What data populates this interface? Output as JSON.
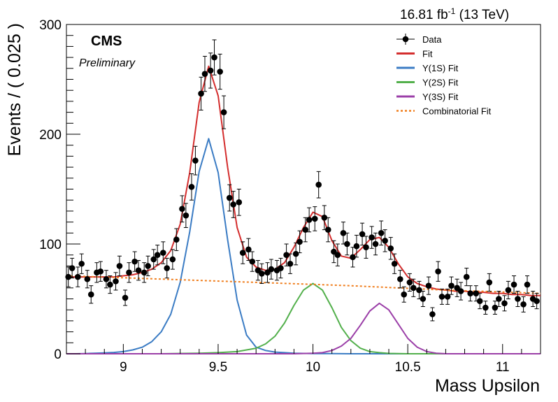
{
  "header": {
    "lumi": "16.81 fb",
    "lumi_exp": "-1",
    "energy": "(13 TeV)",
    "experiment": "CMS",
    "status": "Preliminary"
  },
  "chart_data": {
    "type": "scatter",
    "xlabel": "Mass Upsilon",
    "ylabel": "Events / ( 0.025 )",
    "xlim": [
      8.7,
      11.2
    ],
    "ylim": [
      0,
      300
    ],
    "xticks": [
      9,
      9.5,
      10,
      10.5,
      11
    ],
    "xtick_labels": [
      "9",
      "9.5",
      "10",
      "10.5",
      "11"
    ],
    "yticks": [
      0,
      100,
      200,
      300
    ],
    "ytick_labels": [
      "0",
      "100",
      "200",
      "300"
    ],
    "legend_position": "top-right",
    "series": [
      {
        "name": "Data",
        "kind": "points",
        "color": "#000000",
        "x": [
          8.71,
          8.73,
          8.76,
          8.78,
          8.81,
          8.83,
          8.86,
          8.88,
          8.91,
          8.93,
          8.96,
          8.98,
          9.01,
          9.03,
          9.06,
          9.08,
          9.11,
          9.13,
          9.16,
          9.18,
          9.21,
          9.23,
          9.26,
          9.28,
          9.31,
          9.33,
          9.36,
          9.38,
          9.41,
          9.43,
          9.46,
          9.48,
          9.51,
          9.53,
          9.56,
          9.58,
          9.61,
          9.63,
          9.66,
          9.68,
          9.71,
          9.73,
          9.76,
          9.78,
          9.81,
          9.83,
          9.86,
          9.88,
          9.91,
          9.93,
          9.96,
          9.98,
          10.01,
          10.03,
          10.06,
          10.08,
          10.11,
          10.13,
          10.16,
          10.18,
          10.21,
          10.23,
          10.26,
          10.28,
          10.31,
          10.33,
          10.36,
          10.38,
          10.41,
          10.43,
          10.46,
          10.48,
          10.51,
          10.53,
          10.56,
          10.58,
          10.61,
          10.63,
          10.66,
          10.68,
          10.71,
          10.73,
          10.76,
          10.78,
          10.81,
          10.83,
          10.86,
          10.88,
          10.91,
          10.93,
          10.96,
          10.98,
          11.01,
          11.03,
          11.06,
          11.08,
          11.11,
          11.13,
          11.16,
          11.18
        ],
        "y": [
          70,
          78,
          70,
          82,
          68,
          54,
          74,
          75,
          68,
          63,
          66,
          80,
          51,
          74,
          84,
          76,
          74,
          80,
          86,
          90,
          92,
          78,
          86,
          104,
          132,
          126,
          152,
          176,
          237,
          255,
          258,
          270,
          257,
          220,
          142,
          136,
          138,
          92,
          95,
          84,
          76,
          73,
          74,
          77,
          76,
          78,
          90,
          82,
          91,
          102,
          113,
          122,
          123,
          154,
          124,
          113,
          93,
          90,
          110,
          100,
          88,
          98,
          109,
          97,
          106,
          100,
          110,
          103,
          96,
          82,
          68,
          54,
          65,
          60,
          58,
          50,
          62,
          36,
          75,
          52,
          52,
          62,
          60,
          57,
          70,
          55,
          55,
          48,
          42,
          65,
          42,
          50,
          46,
          58,
          63,
          50,
          45,
          63,
          50,
          48
        ],
        "yerr": [
          9,
          9,
          9,
          9,
          8,
          8,
          9,
          9,
          8,
          8,
          8,
          9,
          7,
          9,
          9,
          9,
          9,
          9,
          9,
          9,
          10,
          9,
          9,
          10,
          12,
          11,
          12,
          13,
          15,
          16,
          16,
          16,
          16,
          15,
          12,
          12,
          12,
          10,
          10,
          9,
          9,
          9,
          9,
          9,
          9,
          9,
          10,
          9,
          10,
          10,
          11,
          11,
          11,
          12,
          11,
          11,
          10,
          10,
          10,
          10,
          9,
          10,
          10,
          10,
          10,
          10,
          11,
          10,
          10,
          9,
          8,
          7,
          8,
          8,
          8,
          7,
          8,
          6,
          9,
          7,
          7,
          8,
          8,
          8,
          8,
          7,
          7,
          7,
          6,
          8,
          6,
          7,
          7,
          8,
          8,
          7,
          7,
          8,
          7,
          7
        ]
      },
      {
        "name": "Fit",
        "kind": "line",
        "color": "#d42e2e",
        "x": [
          8.7,
          8.75,
          8.8,
          8.85,
          8.9,
          8.95,
          9.0,
          9.05,
          9.1,
          9.15,
          9.2,
          9.25,
          9.3,
          9.35,
          9.4,
          9.45,
          9.5,
          9.55,
          9.6,
          9.65,
          9.7,
          9.75,
          9.8,
          9.85,
          9.9,
          9.95,
          10.0,
          10.05,
          10.1,
          10.15,
          10.2,
          10.25,
          10.3,
          10.35,
          10.4,
          10.45,
          10.5,
          10.55,
          10.6,
          10.65,
          10.7,
          10.75,
          10.8,
          10.85,
          10.9,
          10.95,
          11.0,
          11.05,
          11.1,
          11.15,
          11.2
        ],
        "y": [
          70,
          70,
          70,
          70,
          70,
          70,
          71,
          72,
          74,
          77,
          83,
          94,
          118,
          165,
          229,
          262,
          235,
          170,
          115,
          88,
          79,
          76,
          77,
          83,
          97,
          115,
          129,
          125,
          103,
          89,
          87,
          95,
          104,
          106,
          97,
          82,
          70,
          64,
          61,
          59,
          58,
          57,
          57,
          56,
          56,
          55,
          55,
          54,
          54,
          53,
          53
        ]
      },
      {
        "name": "Υ(1S) Fit",
        "kind": "line",
        "color": "#3b7cc4",
        "x": [
          8.7,
          8.75,
          8.8,
          8.85,
          8.9,
          8.95,
          9.0,
          9.05,
          9.1,
          9.15,
          9.2,
          9.25,
          9.3,
          9.35,
          9.4,
          9.45,
          9.5,
          9.55,
          9.6,
          9.65,
          9.7,
          9.75,
          9.8,
          9.85,
          9.9,
          9.95,
          10.0,
          10.1,
          10.2,
          10.4,
          10.6,
          10.8,
          11.0,
          11.2
        ],
        "y": [
          0,
          0,
          0.2,
          0.5,
          0.8,
          1.2,
          2,
          3.5,
          6,
          11,
          20,
          36,
          65,
          111,
          166,
          196,
          165,
          104,
          49,
          17,
          6,
          3,
          1.5,
          1,
          0.5,
          0.3,
          0.2,
          0.1,
          0,
          0,
          0,
          0,
          0,
          0
        ]
      },
      {
        "name": "Υ(2S) Fit",
        "kind": "line",
        "color": "#53b04c",
        "x": [
          8.7,
          9.0,
          9.2,
          9.4,
          9.5,
          9.6,
          9.7,
          9.75,
          9.8,
          9.85,
          9.9,
          9.95,
          10.0,
          10.05,
          10.1,
          10.15,
          10.2,
          10.25,
          10.3,
          10.35,
          10.4,
          10.5,
          10.7,
          11.0,
          11.2
        ],
        "y": [
          0,
          0,
          0,
          0.5,
          1,
          2,
          5,
          9,
          16,
          28,
          44,
          58,
          64,
          58,
          42,
          24,
          12,
          5,
          2,
          1,
          0.3,
          0,
          0,
          0,
          0
        ]
      },
      {
        "name": "Υ(3S) Fit",
        "kind": "line",
        "color": "#9b3fa8",
        "x": [
          8.7,
          9.5,
          9.9,
          10.0,
          10.05,
          10.1,
          10.15,
          10.2,
          10.25,
          10.3,
          10.35,
          10.4,
          10.45,
          10.5,
          10.55,
          10.6,
          10.65,
          10.7,
          11.0,
          11.2
        ],
        "y": [
          0,
          0,
          0,
          0.5,
          1,
          3,
          7,
          14,
          26,
          39,
          46,
          40,
          27,
          14,
          6,
          2,
          0.5,
          0,
          0,
          0
        ]
      },
      {
        "name": "Combinatorial Fit",
        "kind": "dashed",
        "color": "#f07f1f",
        "x": [
          8.7,
          9.2,
          9.7,
          10.2,
          10.7,
          11.2
        ],
        "y": [
          71,
          68,
          65,
          62,
          58,
          55
        ]
      }
    ]
  }
}
